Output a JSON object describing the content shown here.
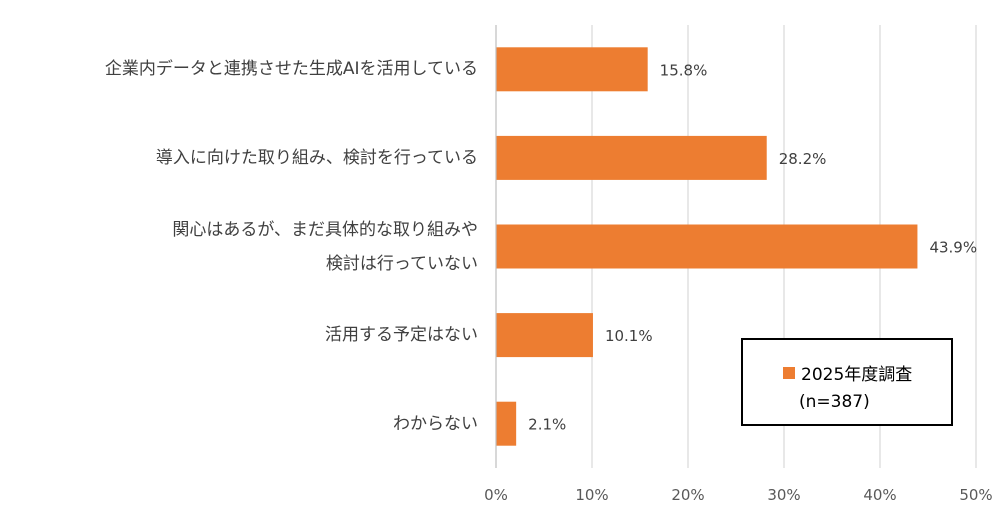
{
  "chart_data": {
    "type": "bar",
    "orientation": "horizontal",
    "categories": [
      [
        "企業内データと連携させた生成AIを活用している"
      ],
      [
        "導入に向けた取り組み、検討を行っている"
      ],
      [
        "関心はあるが、まだ具体的な取り組みや",
        "検討は行っていない"
      ],
      [
        "活用する予定はない"
      ],
      [
        "わからない"
      ]
    ],
    "series": [
      {
        "name": "2025年度調査",
        "values": [
          15.8,
          28.2,
          43.9,
          10.1,
          2.1
        ]
      }
    ],
    "value_labels": [
      "15.8%",
      "28.2%",
      "43.9%",
      "10.1%",
      "2.1%"
    ],
    "xlim": [
      0,
      50
    ],
    "xticks": [
      "0%",
      "10%",
      "20%",
      "30%",
      "40%",
      "50%"
    ],
    "grid": true,
    "legend": {
      "position": "bottom-right",
      "name": "2025年度調査",
      "note": "(n=387)"
    },
    "bar_color": "#ED7D31"
  }
}
